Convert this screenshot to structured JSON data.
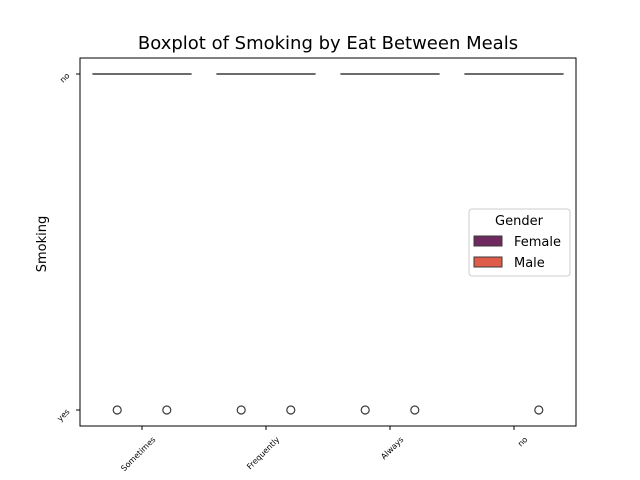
{
  "chart_data": {
    "type": "boxplot",
    "title": "Boxplot of Smoking by Eat Between Meals",
    "xlabel": "",
    "ylabel": "Smoking",
    "categories": [
      "Sometimes",
      "Frequently",
      "Always",
      "no"
    ],
    "y_categories": [
      "no",
      "yes"
    ],
    "legend": {
      "title": "Gender",
      "placement": "center-right",
      "entries": [
        "Female",
        "Male"
      ]
    },
    "series": [
      {
        "name": "Female",
        "color": "#6e2a5e",
        "median": [
          "no",
          "no",
          "no",
          "no"
        ],
        "outliers": [
          [
            "yes"
          ],
          [
            "yes"
          ],
          [
            "yes"
          ],
          []
        ]
      },
      {
        "name": "Male",
        "color": "#e05c4a",
        "median": [
          "no",
          "no",
          "no",
          "no"
        ],
        "outliers": [
          [
            "yes"
          ],
          [
            "yes"
          ],
          [
            "yes"
          ],
          [
            "yes"
          ]
        ]
      }
    ]
  }
}
